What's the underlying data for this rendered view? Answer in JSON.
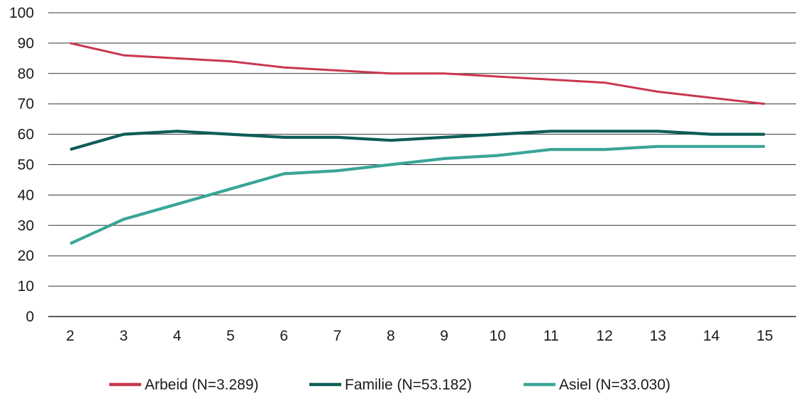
{
  "chart_data": {
    "type": "line",
    "title": "",
    "xlabel": "",
    "ylabel": "",
    "x": [
      2,
      3,
      4,
      5,
      6,
      7,
      8,
      9,
      10,
      11,
      12,
      13,
      14,
      15
    ],
    "ylim": [
      0,
      100
    ],
    "yticks": [
      0,
      10,
      20,
      30,
      40,
      50,
      60,
      70,
      80,
      90,
      100
    ],
    "grid": "horizontal",
    "legend_position": "bottom",
    "series": [
      {
        "name": "Arbeid (N=3.289)",
        "color": "#c8374f",
        "values": [
          90,
          86,
          85,
          84,
          82,
          81,
          80,
          80,
          79,
          78,
          77,
          74,
          72,
          70
        ]
      },
      {
        "name": "Familie (N=53.182)",
        "color": "#0e5d57",
        "values": [
          55,
          60,
          61,
          60,
          59,
          59,
          58,
          59,
          60,
          61,
          61,
          61,
          60,
          60
        ]
      },
      {
        "name": "Asiel (N=33.030)",
        "color": "#3aa597",
        "values": [
          24,
          32,
          37,
          42,
          47,
          48,
          50,
          52,
          53,
          55,
          55,
          56,
          56,
          56
        ]
      }
    ]
  }
}
